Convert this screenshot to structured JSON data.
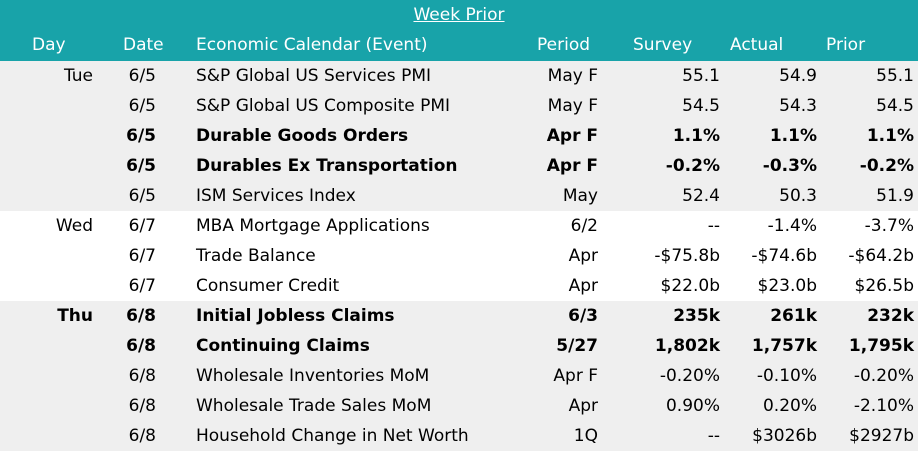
{
  "title": "Week Prior",
  "headers": {
    "day": "Day",
    "date": "Date",
    "event": "Economic Calendar (Event)",
    "period": "Period",
    "survey": "Survey",
    "actual": "Actual",
    "prior": "Prior"
  },
  "rows": [
    {
      "day": "Tue",
      "date": "6/5",
      "event": "S&P Global US Services PMI",
      "period": "May F",
      "survey": "55.1",
      "actual": "54.9",
      "prior": "55.1",
      "bold": false,
      "shade": true
    },
    {
      "day": "",
      "date": "6/5",
      "event": "S&P Global US Composite PMI",
      "period": "May F",
      "survey": "54.5",
      "actual": "54.3",
      "prior": "54.5",
      "bold": false,
      "shade": true
    },
    {
      "day": "",
      "date": "6/5",
      "event": "Durable Goods Orders",
      "period": "Apr F",
      "survey": "1.1%",
      "actual": "1.1%",
      "prior": "1.1%",
      "bold": true,
      "shade": true
    },
    {
      "day": "",
      "date": "6/5",
      "event": "Durables Ex Transportation",
      "period": "Apr F",
      "survey": "-0.2%",
      "actual": "-0.3%",
      "prior": "-0.2%",
      "bold": true,
      "shade": true
    },
    {
      "day": "",
      "date": "6/5",
      "event": "ISM Services Index",
      "period": "May",
      "survey": "52.4",
      "actual": "50.3",
      "prior": "51.9",
      "bold": false,
      "shade": true
    },
    {
      "day": "Wed",
      "date": "6/7",
      "event": "MBA Mortgage Applications",
      "period": "6/2",
      "survey": "--",
      "actual": "-1.4%",
      "prior": "-3.7%",
      "bold": false,
      "shade": false
    },
    {
      "day": "",
      "date": "6/7",
      "event": "Trade Balance",
      "period": "Apr",
      "survey": "-$75.8b",
      "actual": "-$74.6b",
      "prior": "-$64.2b",
      "bold": false,
      "shade": false
    },
    {
      "day": "",
      "date": "6/7",
      "event": "Consumer Credit",
      "period": "Apr",
      "survey": "$22.0b",
      "actual": "$23.0b",
      "prior": "$26.5b",
      "bold": false,
      "shade": false
    },
    {
      "day": "Thu",
      "date": "6/8",
      "event": "Initial Jobless Claims",
      "period": "6/3",
      "survey": "235k",
      "actual": "261k",
      "prior": "232k",
      "bold": true,
      "shade": true
    },
    {
      "day": "",
      "date": "6/8",
      "event": "Continuing Claims",
      "period": "5/27",
      "survey": "1,802k",
      "actual": "1,757k",
      "prior": "1,795k",
      "bold": true,
      "shade": true
    },
    {
      "day": "",
      "date": "6/8",
      "event": "Wholesale Inventories MoM",
      "period": "Apr F",
      "survey": "-0.20%",
      "actual": "-0.10%",
      "prior": "-0.20%",
      "bold": false,
      "shade": true
    },
    {
      "day": "",
      "date": "6/8",
      "event": "Wholesale Trade Sales MoM",
      "period": "Apr",
      "survey": "0.90%",
      "actual": "0.20%",
      "prior": "-2.10%",
      "bold": false,
      "shade": true
    },
    {
      "day": "",
      "date": "6/8",
      "event": "Household Change in Net Worth",
      "period": "1Q",
      "survey": "--",
      "actual": "$3026b",
      "prior": "$2927b",
      "bold": false,
      "shade": true
    }
  ]
}
